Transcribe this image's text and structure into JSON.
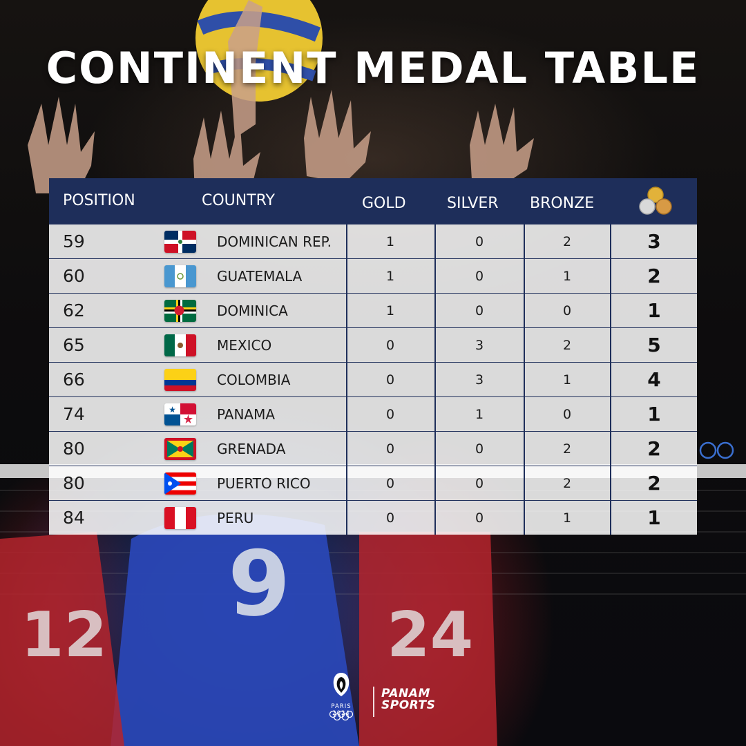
{
  "title": "CONTINENT MEDAL TABLE",
  "table": {
    "headers": {
      "position": "POSITION",
      "country": "COUNTRY",
      "gold": "GOLD",
      "silver": "SILVER",
      "bronze": "BRONZE",
      "total_icon": "medals-stack-icon"
    },
    "rows": [
      {
        "position": "59",
        "flag": "dominican-republic-flag-icon",
        "country": "DOMINICAN REP.",
        "gold": "1",
        "silver": "0",
        "bronze": "2",
        "total": "3"
      },
      {
        "position": "60",
        "flag": "guatemala-flag-icon",
        "country": "GUATEMALA",
        "gold": "1",
        "silver": "0",
        "bronze": "1",
        "total": "2"
      },
      {
        "position": "62",
        "flag": "dominica-flag-icon",
        "country": "DOMINICA",
        "gold": "1",
        "silver": "0",
        "bronze": "0",
        "total": "1"
      },
      {
        "position": "65",
        "flag": "mexico-flag-icon",
        "country": "MEXICO",
        "gold": "0",
        "silver": "3",
        "bronze": "2",
        "total": "5"
      },
      {
        "position": "66",
        "flag": "colombia-flag-icon",
        "country": "COLOMBIA",
        "gold": "0",
        "silver": "3",
        "bronze": "1",
        "total": "4"
      },
      {
        "position": "74",
        "flag": "panama-flag-icon",
        "country": "PANAMA",
        "gold": "0",
        "silver": "1",
        "bronze": "0",
        "total": "1"
      },
      {
        "position": "80",
        "flag": "grenada-flag-icon",
        "country": "GRENADA",
        "gold": "0",
        "silver": "0",
        "bronze": "2",
        "total": "2"
      },
      {
        "position": "80",
        "flag": "puerto-rico-flag-icon",
        "country": "PUERTO RICO",
        "gold": "0",
        "silver": "0",
        "bronze": "2",
        "total": "2"
      },
      {
        "position": "84",
        "flag": "peru-flag-icon",
        "country": "PERU",
        "gold": "0",
        "silver": "0",
        "bronze": "1",
        "total": "1"
      }
    ]
  },
  "footer": {
    "paris_logo_text": "PARIS 2024",
    "panam_logo_text": "PANAM SPORTS"
  },
  "colors": {
    "header_bg": "#1e2e5a",
    "row_bg": "#ffffff",
    "text": "#1b1b1b"
  }
}
